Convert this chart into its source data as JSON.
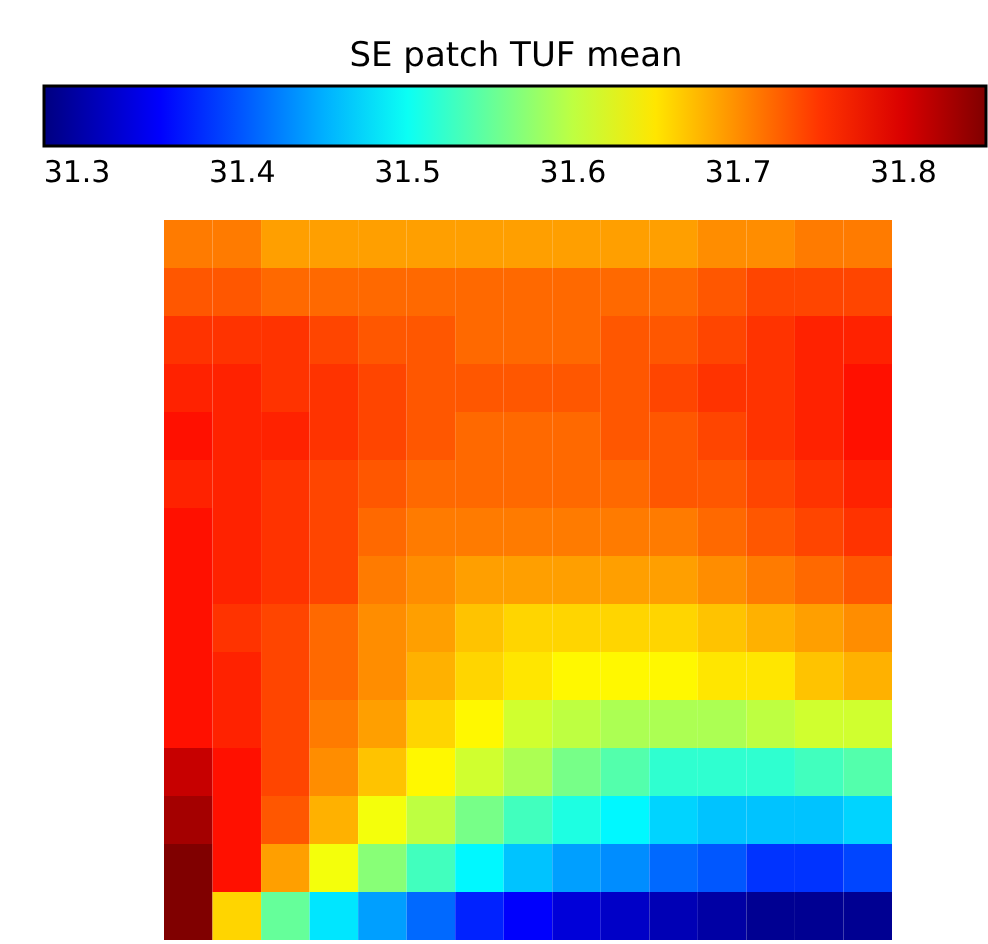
{
  "chart_data": {
    "type": "heatmap",
    "clabel": "SE patch TUF mean",
    "categories": [
      null,
      null,
      null,
      null,
      null,
      null,
      null,
      null,
      null,
      null,
      null,
      null,
      null,
      null,
      null
    ],
    "y_categories": [
      null,
      null,
      null,
      null,
      null,
      null,
      null,
      null,
      null,
      null,
      null,
      null,
      null,
      null,
      null
    ],
    "tick_labels": false,
    "clim": [
      31.28,
      31.85
    ],
    "cticks": [
      31.3,
      31.4,
      31.5,
      31.6,
      31.7,
      31.8
    ],
    "cells": [
      [
        31.71,
        31.71,
        31.69,
        31.69,
        31.69,
        31.69,
        31.69,
        31.69,
        31.69,
        31.69,
        31.69,
        31.7,
        31.7,
        31.71,
        31.71
      ],
      [
        31.73,
        31.73,
        31.72,
        31.72,
        31.72,
        31.72,
        31.72,
        31.72,
        31.72,
        31.72,
        31.72,
        31.73,
        31.74,
        31.74,
        31.74
      ],
      [
        31.75,
        31.75,
        31.75,
        31.74,
        31.73,
        31.73,
        31.72,
        31.72,
        31.72,
        31.73,
        31.73,
        31.74,
        31.75,
        31.76,
        31.76
      ],
      [
        31.76,
        31.76,
        31.75,
        31.75,
        31.74,
        31.73,
        31.73,
        31.73,
        31.73,
        31.73,
        31.74,
        31.75,
        31.75,
        31.76,
        31.77
      ],
      [
        31.77,
        31.76,
        31.76,
        31.75,
        31.74,
        31.73,
        31.72,
        31.72,
        31.72,
        31.73,
        31.73,
        31.74,
        31.75,
        31.76,
        31.77
      ],
      [
        31.76,
        31.76,
        31.75,
        31.74,
        31.73,
        31.72,
        31.72,
        31.72,
        31.72,
        31.72,
        31.73,
        31.73,
        31.74,
        31.75,
        31.76
      ],
      [
        31.77,
        31.76,
        31.75,
        31.74,
        31.72,
        31.71,
        31.71,
        31.71,
        31.71,
        31.71,
        31.71,
        31.72,
        31.73,
        31.74,
        31.75
      ],
      [
        31.77,
        31.76,
        31.75,
        31.74,
        31.71,
        31.7,
        31.69,
        31.69,
        31.69,
        31.69,
        31.69,
        31.7,
        31.71,
        31.72,
        31.73
      ],
      [
        31.77,
        31.75,
        31.74,
        31.72,
        31.7,
        31.69,
        31.67,
        31.66,
        31.66,
        31.66,
        31.66,
        31.67,
        31.68,
        31.69,
        31.7
      ],
      [
        31.77,
        31.76,
        31.74,
        31.72,
        31.7,
        31.68,
        31.66,
        31.65,
        31.64,
        31.64,
        31.64,
        31.65,
        31.65,
        31.67,
        31.68
      ],
      [
        31.77,
        31.76,
        31.74,
        31.71,
        31.69,
        31.66,
        31.64,
        31.61,
        31.6,
        31.59,
        31.59,
        31.59,
        31.6,
        31.61,
        31.61
      ],
      [
        31.81,
        31.77,
        31.74,
        31.7,
        31.67,
        31.64,
        31.61,
        31.59,
        31.56,
        31.54,
        31.52,
        31.52,
        31.52,
        31.53,
        31.54
      ],
      [
        31.83,
        31.77,
        31.73,
        31.68,
        31.63,
        31.6,
        31.56,
        31.53,
        31.51,
        31.49,
        31.47,
        31.46,
        31.46,
        31.46,
        31.47
      ],
      [
        31.85,
        31.77,
        31.69,
        31.63,
        31.57,
        31.53,
        31.49,
        31.46,
        31.44,
        31.43,
        31.41,
        31.4,
        31.38,
        31.38,
        31.39
      ],
      [
        31.85,
        31.66,
        31.55,
        31.48,
        31.44,
        31.41,
        31.37,
        31.35,
        31.33,
        31.32,
        31.31,
        31.3,
        31.29,
        31.29,
        31.29
      ]
    ]
  }
}
